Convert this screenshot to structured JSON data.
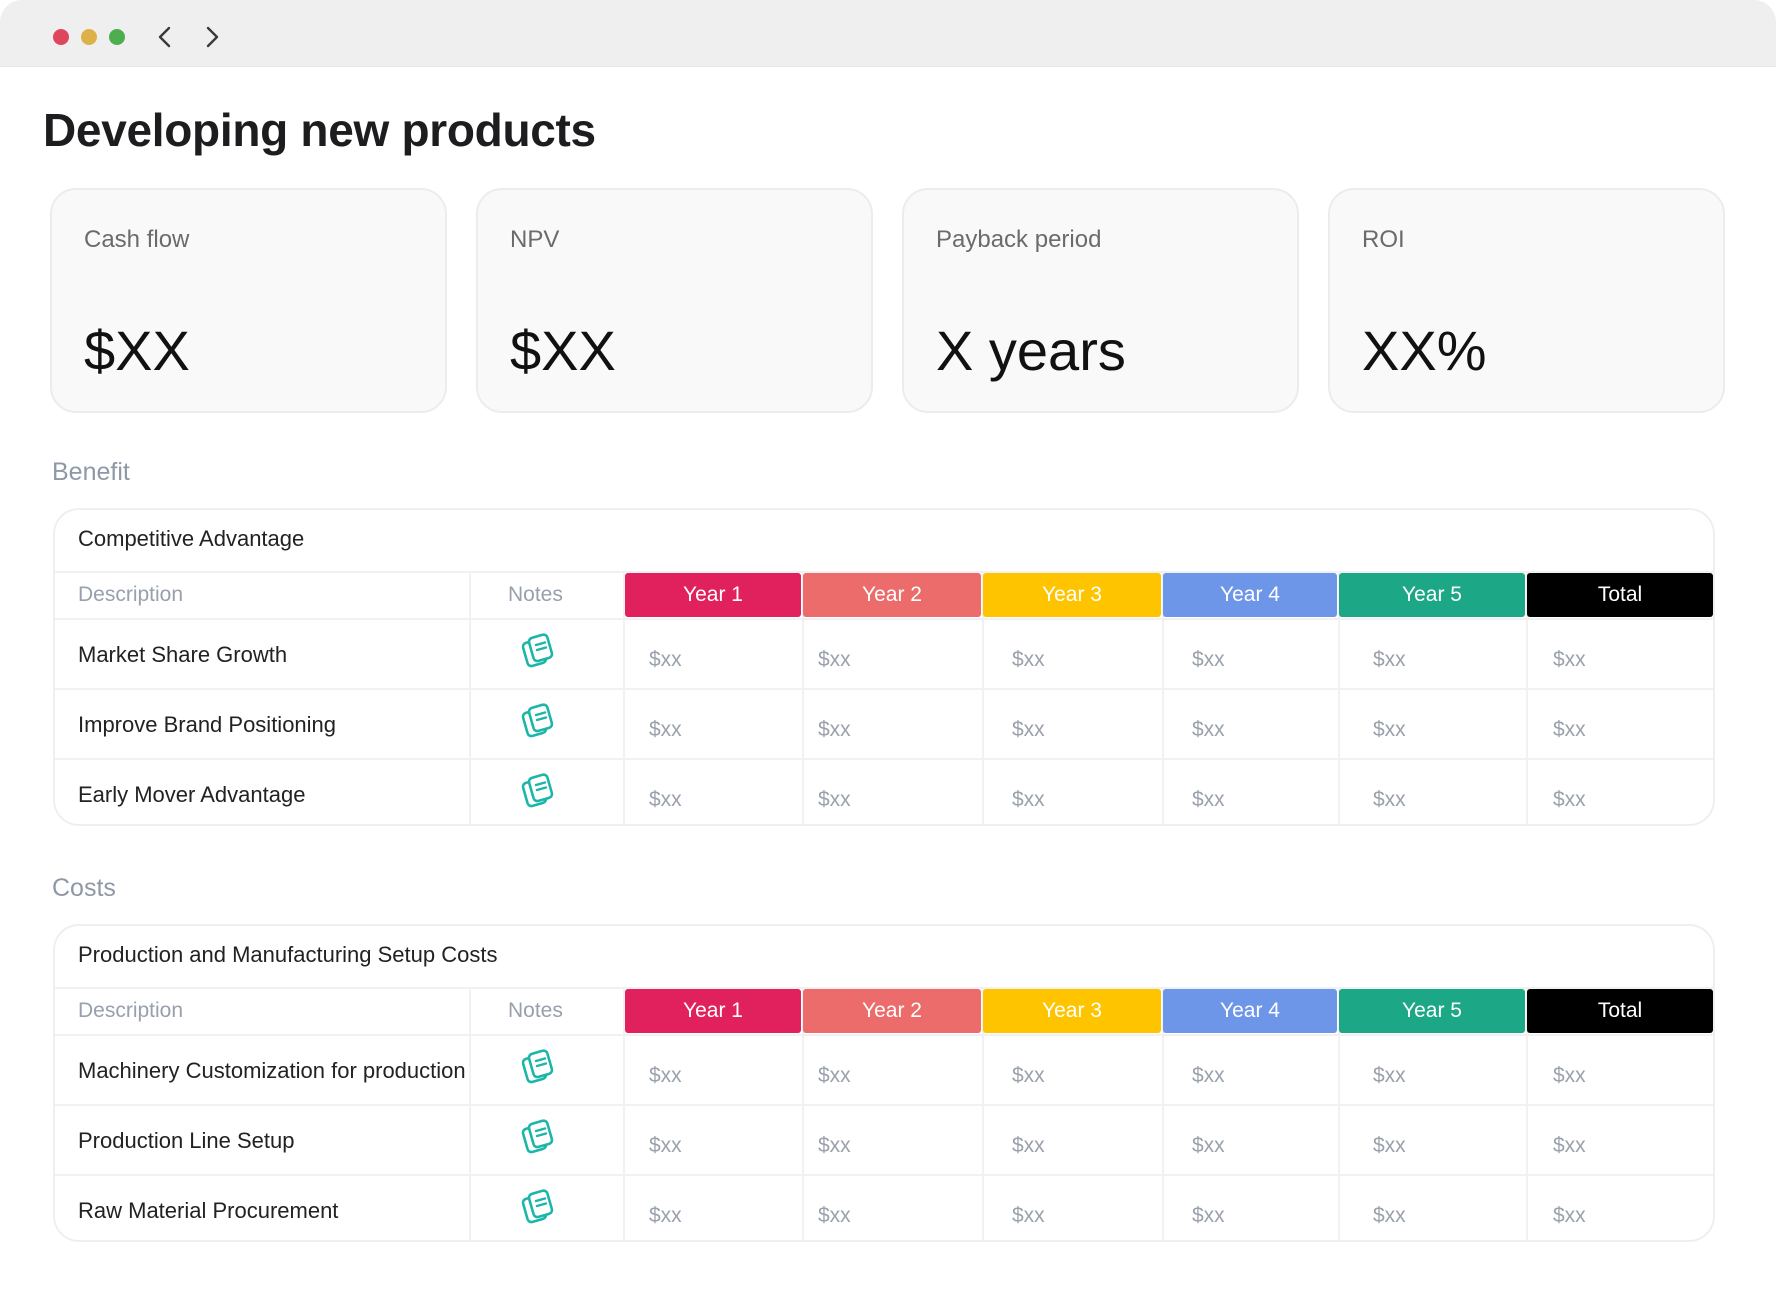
{
  "page": {
    "title": "Developing new products"
  },
  "kpis": [
    {
      "label": "Cash flow",
      "value": "$XX"
    },
    {
      "label": "NPV",
      "value": "$XX"
    },
    {
      "label": "Payback period",
      "value": "X years"
    },
    {
      "label": "ROI",
      "value": "XX%"
    }
  ],
  "columns": {
    "description": "Description",
    "notes": "Notes",
    "years": [
      {
        "label": "Year 1",
        "color": "#e0215d"
      },
      {
        "label": "Year 2",
        "color": "#eb6c6a"
      },
      {
        "label": "Year 3",
        "color": "#fec400"
      },
      {
        "label": "Year 4",
        "color": "#6d96e9"
      },
      {
        "label": "Year 5",
        "color": "#1ca886"
      },
      {
        "label": "Total",
        "color": "#000000"
      }
    ]
  },
  "benefit": {
    "section_label": "Benefit",
    "card_title": "Competitive Advantage",
    "rows": [
      {
        "description": "Market Share Growth",
        "values": [
          "$xx",
          "$xx",
          "$xx",
          "$xx",
          "$xx",
          "$xx"
        ]
      },
      {
        "description": "Improve Brand Positioning",
        "values": [
          "$xx",
          "$xx",
          "$xx",
          "$xx",
          "$xx",
          "$xx"
        ]
      },
      {
        "description": "Early Mover Advantage",
        "values": [
          "$xx",
          "$xx",
          "$xx",
          "$xx",
          "$xx",
          "$xx"
        ]
      }
    ]
  },
  "costs": {
    "section_label": "Costs",
    "card_title": "Production and Manufacturing Setup Costs",
    "rows": [
      {
        "description": "Machinery Customization for production",
        "values": [
          "$xx",
          "$xx",
          "$xx",
          "$xx",
          "$xx",
          "$xx"
        ]
      },
      {
        "description": "Production Line Setup",
        "values": [
          "$xx",
          "$xx",
          "$xx",
          "$xx",
          "$xx",
          "$xx"
        ]
      },
      {
        "description": "Raw Material Procurement",
        "values": [
          "$xx",
          "$xx",
          "$xx",
          "$xx",
          "$xx",
          "$xx"
        ]
      }
    ]
  },
  "icons": {
    "back": "chevron-left-icon",
    "forward": "chevron-right-icon",
    "notes": "notes-icon",
    "note_color": "#1bb6a8"
  }
}
